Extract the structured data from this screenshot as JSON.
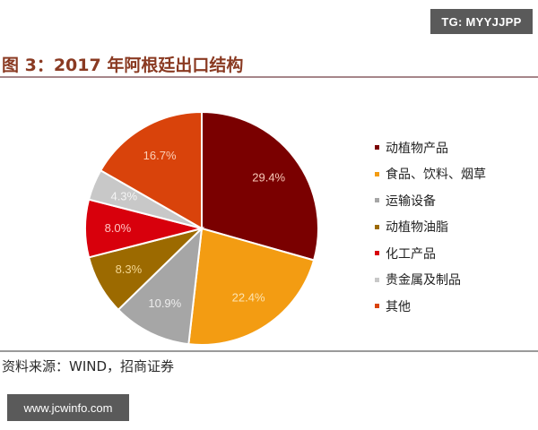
{
  "watermark_top": "TG: MYYJJPP",
  "watermark_bottom": "www.jcwinfo.com",
  "figure": {
    "title": "图 3：2017 年阿根廷出口结构",
    "source": "资料来源：WIND，招商证券"
  },
  "legend": [
    {
      "label": "动植物产品",
      "color": "#7a0000"
    },
    {
      "label": "食品、饮料、烟草",
      "color": "#f39c12"
    },
    {
      "label": "运输设备",
      "color": "#a6a6a6"
    },
    {
      "label": "动植物油脂",
      "color": "#9c6a00"
    },
    {
      "label": "化工产品",
      "color": "#d8000c"
    },
    {
      "label": "贵金属及制品",
      "color": "#c8c8c8"
    },
    {
      "label": "其他",
      "color": "#d9430b"
    }
  ],
  "chart_data": {
    "type": "pie",
    "title": "图 3：2017 年阿根廷出口结构",
    "categories": [
      "动植物产品",
      "食品、饮料、烟草",
      "运输设备",
      "动植物油脂",
      "化工产品",
      "贵金属及制品",
      "其他"
    ],
    "values": [
      29.4,
      22.4,
      10.9,
      8.3,
      8.0,
      4.3,
      16.7
    ],
    "labels": [
      "29.4%",
      "22.4%",
      "10.9%",
      "8.3%",
      "8.0%",
      "4.3%",
      "16.7%"
    ],
    "colors": [
      "#7a0000",
      "#f39c12",
      "#a6a6a6",
      "#9c6a00",
      "#d8000c",
      "#c8c8c8",
      "#d9430b"
    ],
    "label_colors": [
      "#f7c9b8",
      "#fde3b0",
      "#ececec",
      "#f3d690",
      "#ffc2c2",
      "#f4f4f4",
      "#fcd0b8"
    ],
    "start_angle": "12 o'clock",
    "direction": "clockwise",
    "legend_position": "right",
    "source": "资料来源：WIND，招商证券"
  }
}
